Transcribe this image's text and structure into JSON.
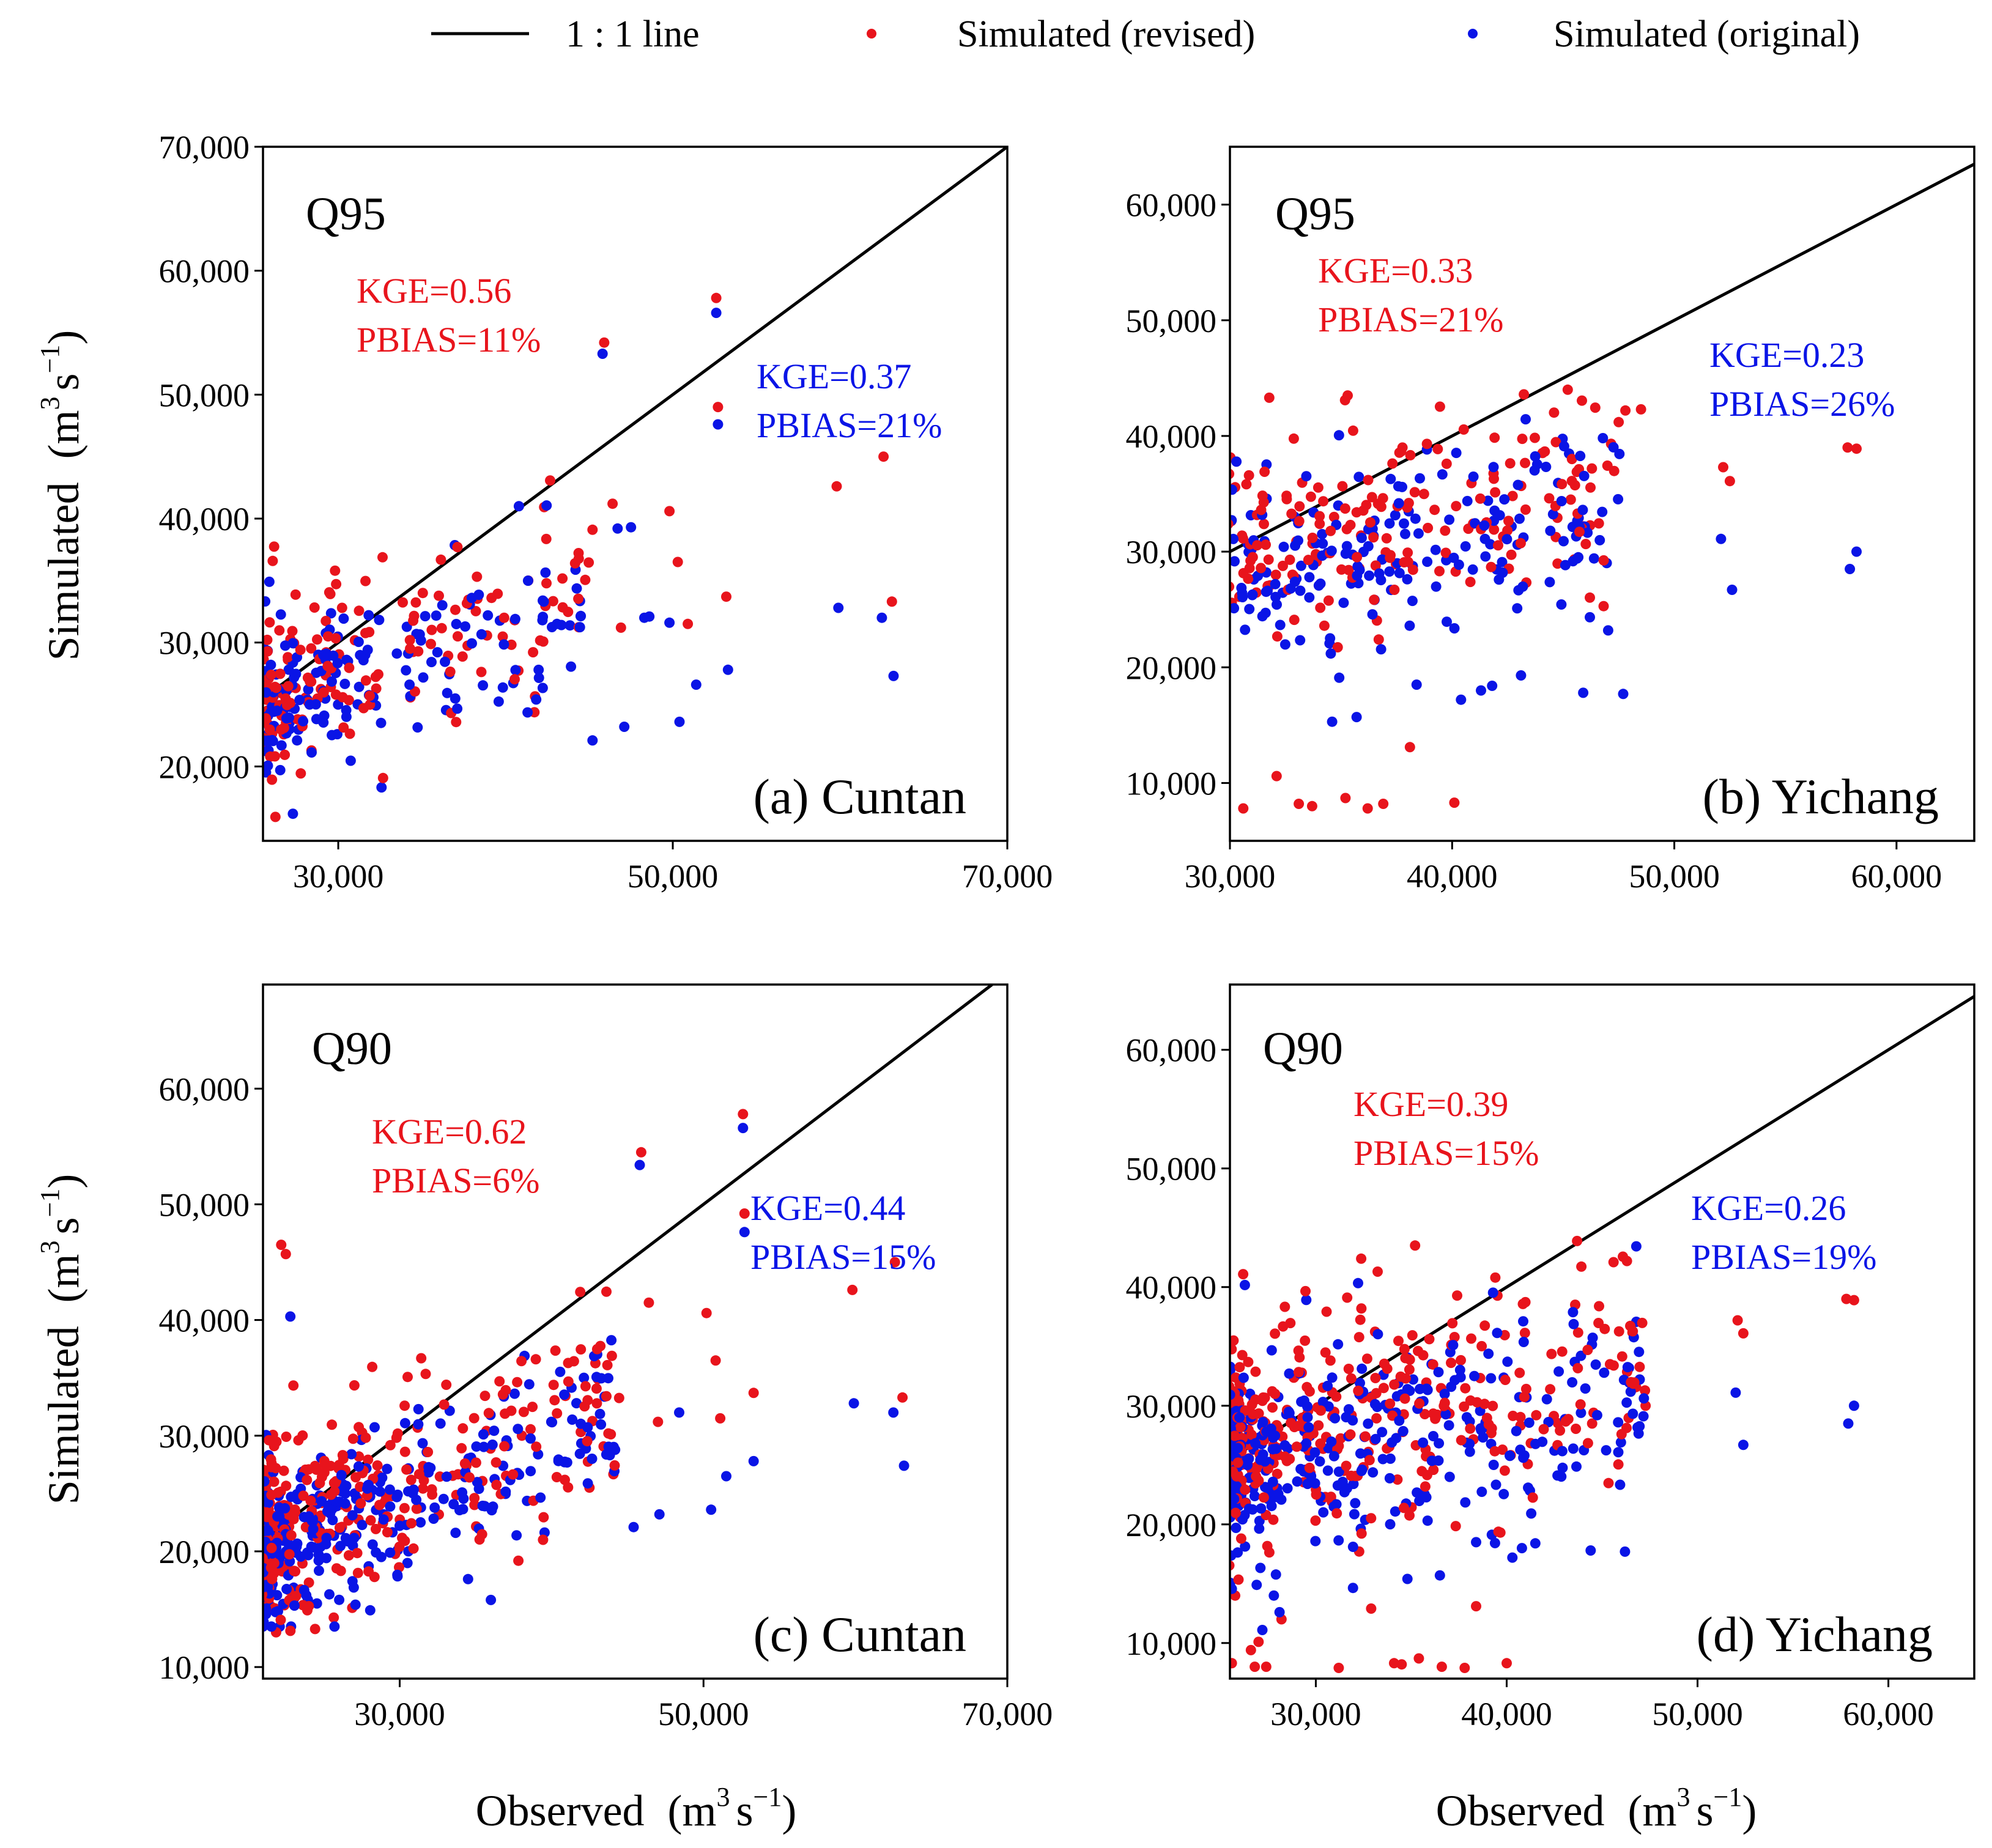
{
  "legend": {
    "line_label": "1 : 1 line",
    "revised_label": "Simulated (revised)",
    "original_label": "Simulated (original)"
  },
  "colors": {
    "revised": "#e8141c",
    "original": "#0a14e6",
    "line": "#000000"
  },
  "axis_labels": {
    "ylabel_main": "Simulated",
    "xlabel_main": "Observed",
    "unit_base": "(m",
    "unit_exp": "3",
    "unit_s": "s",
    "unit_sexp": "−1",
    "unit_close": ")"
  },
  "chart_data": [
    {
      "id": "a",
      "type": "scatter",
      "quantile": "Q95",
      "station": "(a) Cuntan",
      "xlim": [
        25500,
        70000
      ],
      "ylim": [
        14000,
        70000
      ],
      "xticks": [
        30000,
        50000,
        70000
      ],
      "xtick_labels": [
        "30,000",
        "50,000",
        "70,000"
      ],
      "yticks": [
        20000,
        30000,
        40000,
        50000,
        60000,
        70000
      ],
      "ytick_labels": [
        "20,000",
        "30,000",
        "40,000",
        "50,000",
        "60,000",
        "70,000"
      ],
      "revised": {
        "kge": "KGE=0.56",
        "pbias": "PBIAS=11%"
      },
      "original": {
        "kge": "KGE=0.37",
        "pbias": "PBIAS=21%"
      },
      "outliers_revised": [
        [
          45900,
          54200
        ],
        [
          52600,
          57800
        ],
        [
          52700,
          49000
        ],
        [
          59800,
          42600
        ],
        [
          62600,
          45000
        ],
        [
          63100,
          33300
        ],
        [
          53200,
          33700
        ],
        [
          50900,
          31500
        ],
        [
          49800,
          40600
        ],
        [
          50300,
          36500
        ],
        [
          46400,
          41200
        ],
        [
          46900,
          31200
        ],
        [
          45200,
          39100
        ]
      ],
      "outliers_original": [
        [
          45800,
          53300
        ],
        [
          52600,
          56600
        ],
        [
          52700,
          47600
        ],
        [
          59900,
          32800
        ],
        [
          62500,
          32000
        ],
        [
          63200,
          27300
        ],
        [
          53300,
          27800
        ],
        [
          51400,
          26600
        ],
        [
          50400,
          23600
        ],
        [
          47100,
          23200
        ],
        [
          45200,
          22100
        ],
        [
          48300,
          32000
        ],
        [
          48600,
          32100
        ],
        [
          49800,
          31600
        ],
        [
          46700,
          39200
        ],
        [
          47500,
          39300
        ],
        [
          40800,
          41000
        ]
      ]
    },
    {
      "id": "b",
      "type": "scatter",
      "quantile": "Q95",
      "station": "(b) Yichang",
      "xlim": [
        30000,
        63500
      ],
      "ylim": [
        5000,
        65000
      ],
      "xticks": [
        30000,
        40000,
        50000,
        60000
      ],
      "xtick_labels": [
        "30,000",
        "40,000",
        "50,000",
        "60,000"
      ],
      "yticks": [
        10000,
        20000,
        30000,
        40000,
        50000,
        60000
      ],
      "ytick_labels": [
        "10,000",
        "20,000",
        "30,000",
        "40,000",
        "50,000",
        "60,000"
      ],
      "revised": {
        "kge": "KGE=0.33",
        "pbias": "PBIAS=21%"
      },
      "original": {
        "kge": "KGE=0.23",
        "pbias": "PBIAS=26%"
      },
      "outliers_revised": [
        [
          52200,
          37300
        ],
        [
          52500,
          36100
        ],
        [
          57800,
          39000
        ],
        [
          58200,
          38900
        ],
        [
          30600,
          7800
        ],
        [
          32100,
          10600
        ],
        [
          33100,
          8200
        ],
        [
          33700,
          8000
        ],
        [
          35200,
          8700
        ],
        [
          36200,
          7800
        ],
        [
          36900,
          8200
        ],
        [
          38100,
          13100
        ],
        [
          40100,
          8300
        ],
        [
          35300,
          43500
        ],
        [
          47800,
          42200
        ],
        [
          48500,
          42300
        ]
      ],
      "outliers_original": [
        [
          52100,
          31100
        ],
        [
          52600,
          26700
        ],
        [
          57900,
          28500
        ],
        [
          58200,
          30000
        ],
        [
          47700,
          17700
        ],
        [
          45900,
          17800
        ],
        [
          35700,
          15700
        ],
        [
          34600,
          15300
        ],
        [
          38400,
          18500
        ],
        [
          40400,
          17200
        ],
        [
          41300,
          18000
        ],
        [
          41800,
          18400
        ],
        [
          43100,
          19300
        ]
      ]
    },
    {
      "id": "c",
      "type": "scatter",
      "quantile": "Q90",
      "station": "(c) Cuntan",
      "xlim": [
        21000,
        70000
      ],
      "ylim": [
        9000,
        69000
      ],
      "xticks": [
        30000,
        50000,
        70000
      ],
      "xtick_labels": [
        "30,000",
        "50,000",
        "70,000"
      ],
      "yticks": [
        10000,
        20000,
        30000,
        40000,
        50000,
        60000
      ],
      "ytick_labels": [
        "10,000",
        "20,000",
        "30,000",
        "40,000",
        "50,000",
        "60,000"
      ],
      "revised": {
        "kge": "KGE=0.62",
        "pbias": "PBIAS=6%"
      },
      "original": {
        "kge": "KGE=0.44",
        "pbias": "PBIAS=15%"
      },
      "outliers_revised": [
        [
          45900,
          54500
        ],
        [
          52600,
          57800
        ],
        [
          52700,
          49200
        ],
        [
          59800,
          42600
        ],
        [
          62600,
          45000
        ],
        [
          63100,
          33300
        ],
        [
          53300,
          33700
        ],
        [
          51100,
          31500
        ],
        [
          50200,
          40600
        ],
        [
          50800,
          36500
        ],
        [
          46400,
          41500
        ],
        [
          47000,
          31200
        ],
        [
          22200,
          46500
        ],
        [
          22500,
          45700
        ]
      ],
      "outliers_original": [
        [
          45800,
          53400
        ],
        [
          52600,
          56600
        ],
        [
          52700,
          47600
        ],
        [
          59900,
          32800
        ],
        [
          62500,
          32000
        ],
        [
          63200,
          27400
        ],
        [
          53300,
          27800
        ],
        [
          51500,
          26500
        ],
        [
          50500,
          23600
        ],
        [
          47100,
          23200
        ],
        [
          45400,
          22100
        ],
        [
          48400,
          32000
        ],
        [
          22800,
          40300
        ],
        [
          36000,
          15800
        ],
        [
          34500,
          17600
        ]
      ]
    },
    {
      "id": "d",
      "type": "scatter",
      "quantile": "Q90",
      "station": "(d) Yichang",
      "xlim": [
        25500,
        64500
      ],
      "ylim": [
        7000,
        65500
      ],
      "xticks": [
        30000,
        40000,
        50000,
        60000
      ],
      "xtick_labels": [
        "30,000",
        "40,000",
        "50,000",
        "60,000"
      ],
      "yticks": [
        10000,
        20000,
        30000,
        40000,
        50000,
        60000
      ],
      "ytick_labels": [
        "10,000",
        "20,000",
        "30,000",
        "40,000",
        "50,000",
        "60,000"
      ],
      "revised": {
        "kge": "KGE=0.39",
        "pbias": "PBIAS=15%"
      },
      "original": {
        "kge": "KGE=0.26",
        "pbias": "PBIAS=19%"
      },
      "outliers_revised": [
        [
          52100,
          37200
        ],
        [
          52400,
          36100
        ],
        [
          57800,
          39000
        ],
        [
          58200,
          38900
        ],
        [
          25600,
          8300
        ],
        [
          26800,
          8000
        ],
        [
          27400,
          8000
        ],
        [
          28200,
          12000
        ],
        [
          31200,
          7900
        ],
        [
          32900,
          12900
        ],
        [
          34100,
          8300
        ],
        [
          34500,
          8200
        ],
        [
          35400,
          8700
        ],
        [
          36600,
          8000
        ],
        [
          37800,
          7900
        ],
        [
          38400,
          13100
        ],
        [
          40000,
          8300
        ],
        [
          35200,
          43500
        ],
        [
          45600,
          42100
        ],
        [
          46300,
          42200
        ],
        [
          27000,
          10100
        ],
        [
          26600,
          9400
        ]
      ],
      "outliers_original": [
        [
          52000,
          31100
        ],
        [
          52400,
          26700
        ],
        [
          57900,
          28500
        ],
        [
          58200,
          30000
        ],
        [
          46200,
          17700
        ],
        [
          44400,
          17800
        ],
        [
          34800,
          15400
        ],
        [
          36500,
          15700
        ],
        [
          38400,
          18500
        ],
        [
          40300,
          17200
        ],
        [
          40800,
          18000
        ],
        [
          41500,
          18400
        ],
        [
          27200,
          11100
        ],
        [
          26900,
          14900
        ],
        [
          27800,
          14000
        ],
        [
          28100,
          12600
        ]
      ]
    }
  ]
}
